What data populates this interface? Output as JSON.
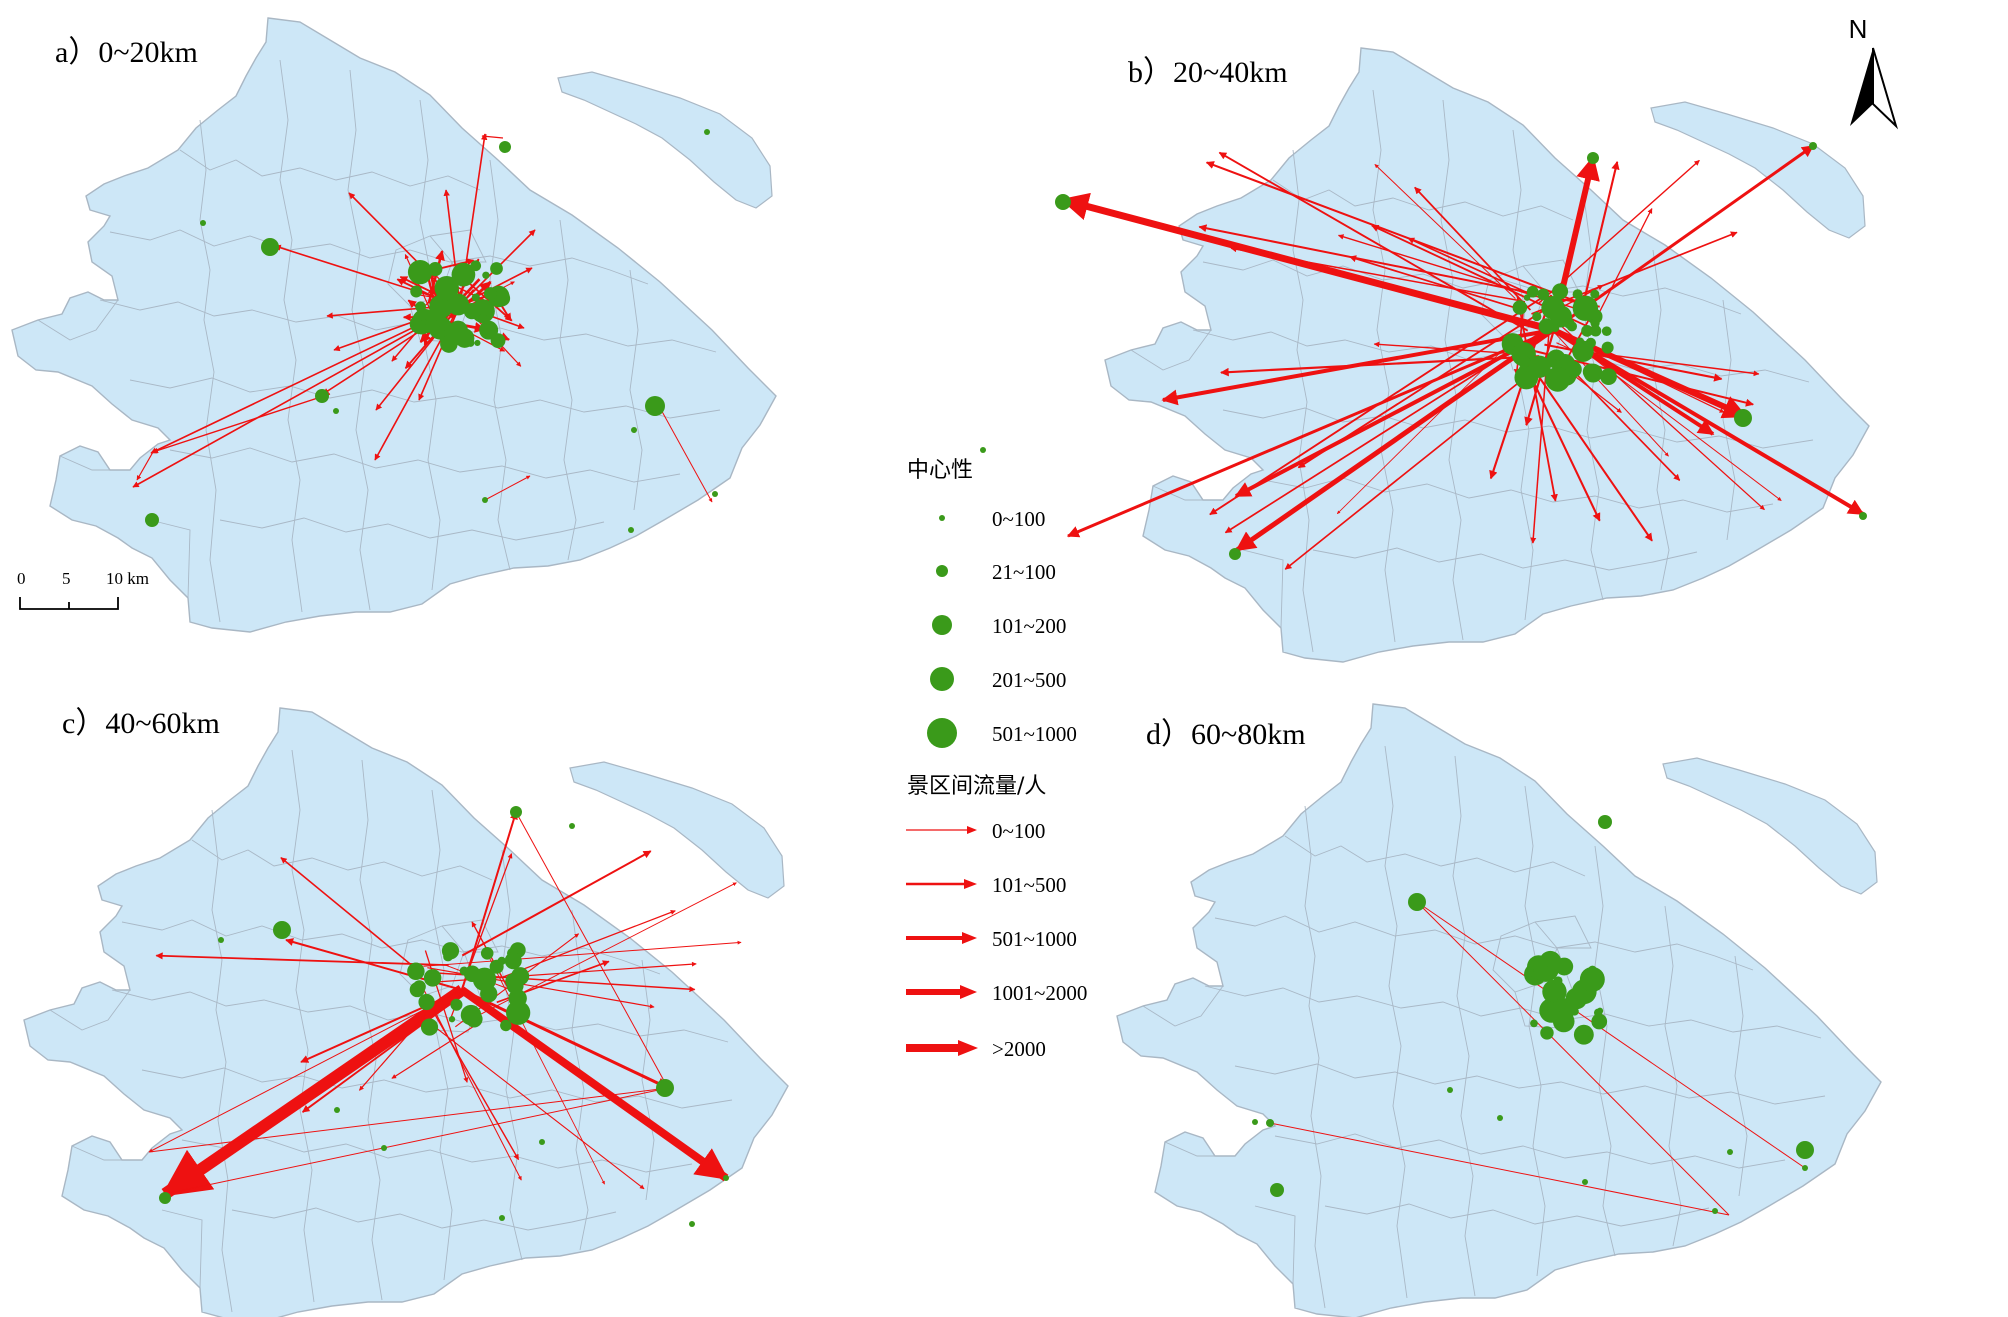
{
  "panels": [
    {
      "id": "a",
      "title": "a）0~20km"
    },
    {
      "id": "b",
      "title": "b）20~40km"
    },
    {
      "id": "c",
      "title": "c）40~60km"
    },
    {
      "id": "d",
      "title": "d）60~80km"
    }
  ],
  "north_arrow": {
    "label": "N"
  },
  "scale_bar": {
    "ticks": [
      "0",
      "5",
      "10 km"
    ]
  },
  "legend": {
    "centrality_title": "中心性",
    "centrality_classes": [
      "0~100",
      "21~100",
      "101~200",
      "201~500",
      "501~1000"
    ],
    "flow_title": "景区间流量/人",
    "flow_classes": [
      "0~100",
      "101~500",
      "501~1000",
      "1001~2000",
      ">2000"
    ]
  },
  "colors": {
    "land": "#cde7f7",
    "boundary": "#a9b7c4",
    "node": "#3a9a1a",
    "flow": "#ee1111",
    "background": "#ffffff"
  }
}
